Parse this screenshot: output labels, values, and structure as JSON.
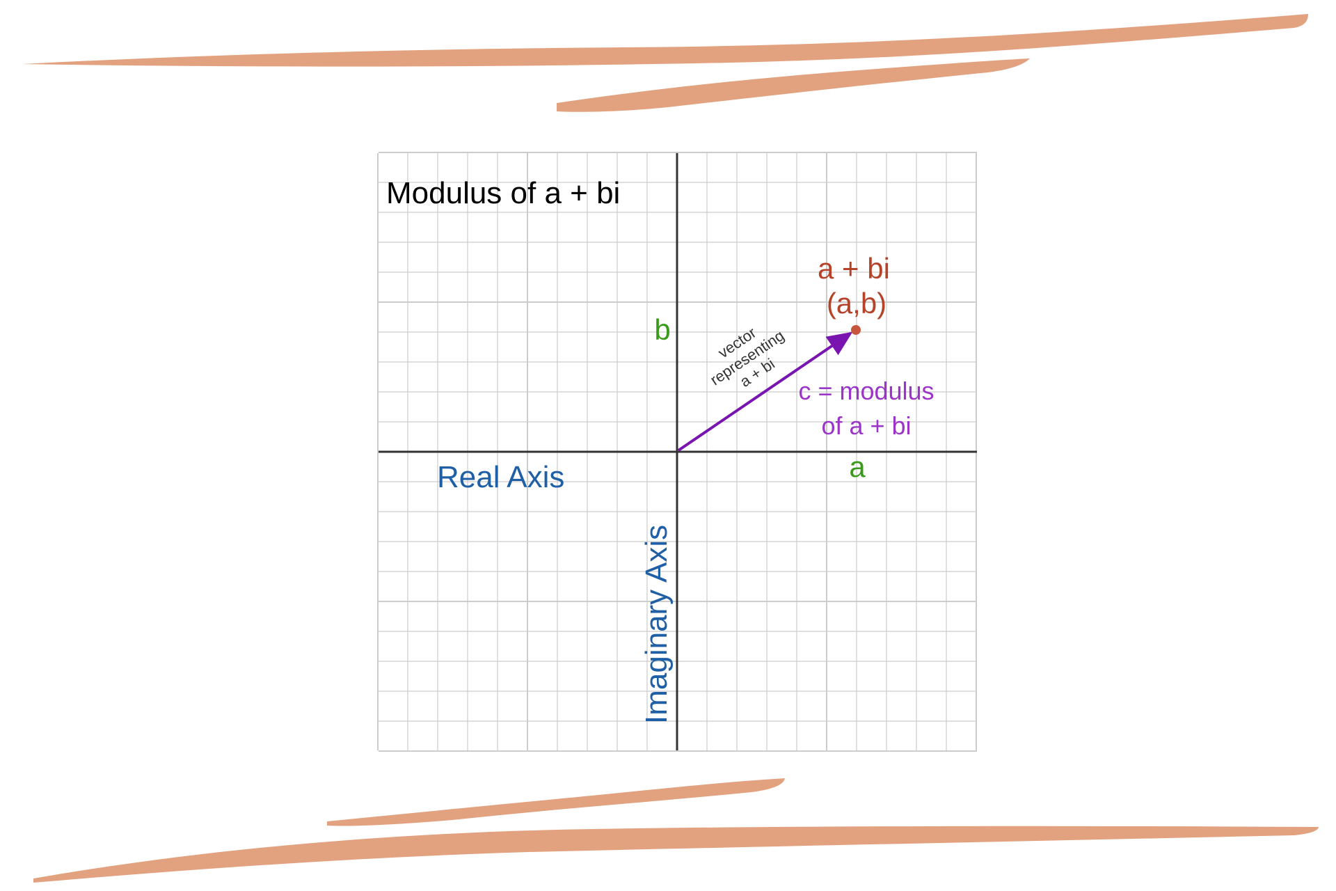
{
  "diagram": {
    "title": "Modulus of a + bi",
    "real_axis_label": "Real Axis",
    "imaginary_axis_label": "Imaginary Axis",
    "point_label": "a + bi",
    "point_coords": "(a,b)",
    "a_label": "a",
    "b_label": "b",
    "vector_label_line1": "vector",
    "vector_label_line2": "representing",
    "vector_label_line3": "a + bi",
    "modulus_line1": "c = modulus",
    "modulus_line2": "of a + bi"
  },
  "colors": {
    "brush_stroke": "#e3a27f",
    "grid_line": "#cccccc",
    "axis_line": "#333333",
    "title_text": "#000000",
    "axis_label_text": "#1f5fa5",
    "ab_label_text": "#3a9a1a",
    "point_text": "#b5432a",
    "point_dot": "#c8553d",
    "vector": "#7a14b0",
    "vector_text": "#333333",
    "modulus_text": "#9b35c8"
  }
}
